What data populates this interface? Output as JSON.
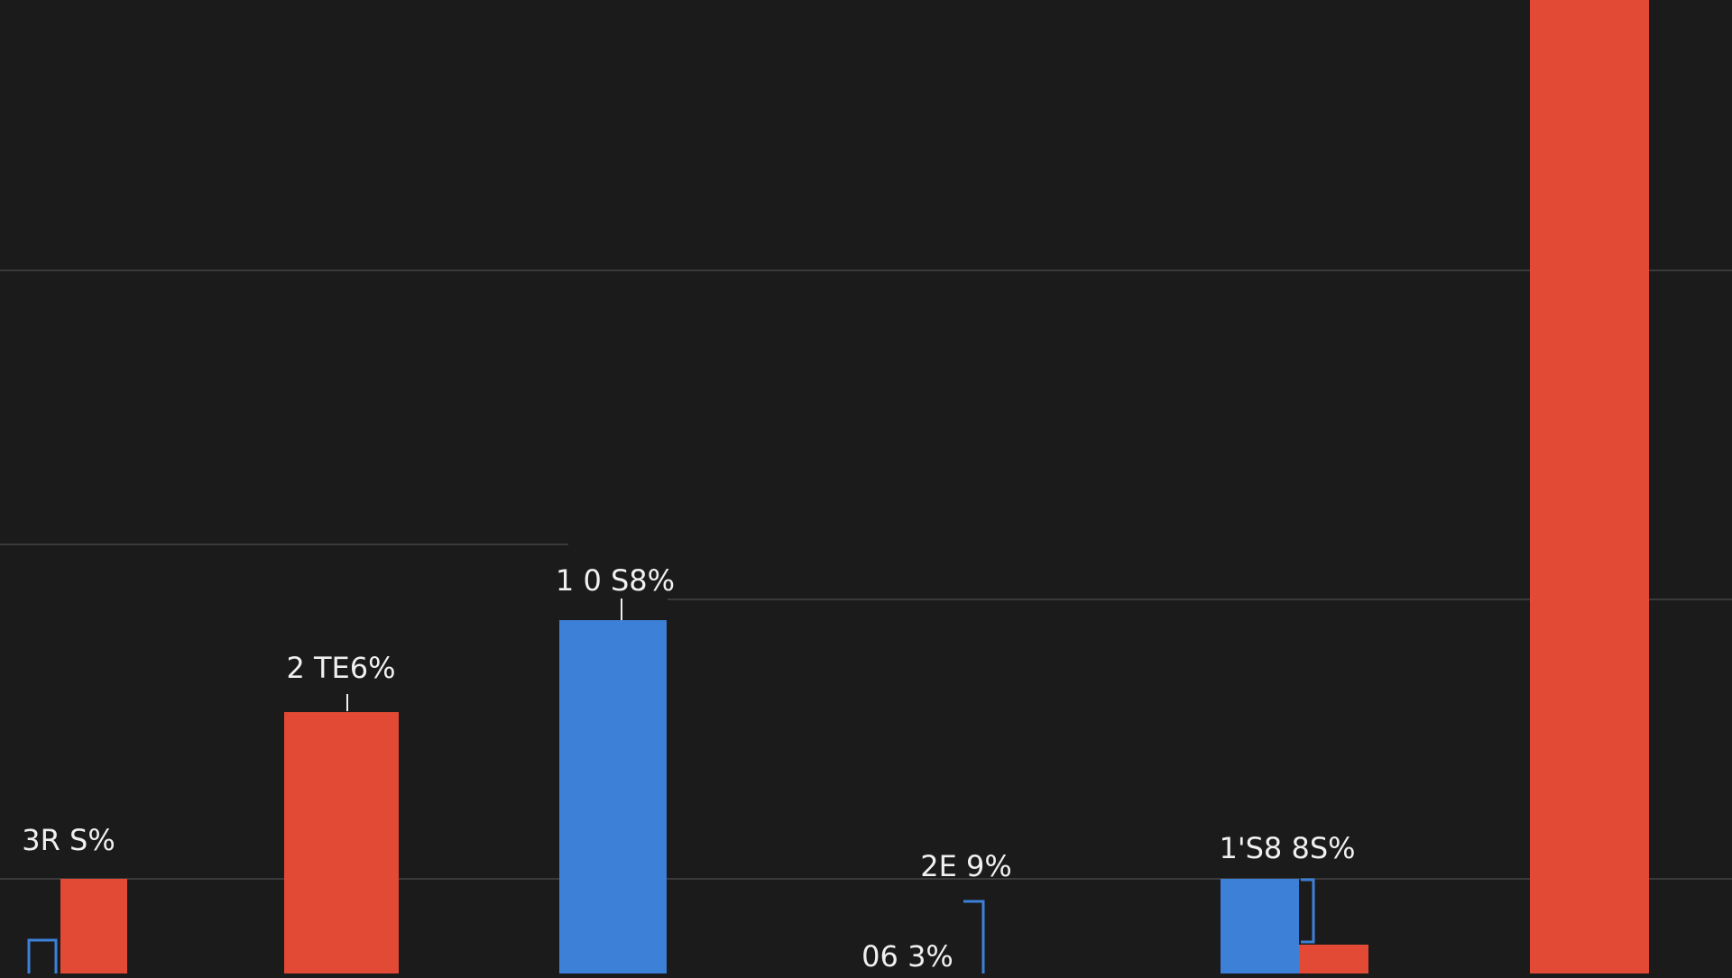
{
  "chart_data": {
    "type": "bar",
    "title": "",
    "xlabel": "",
    "ylabel": "",
    "grid": true,
    "legend": "none",
    "ylim": [
      0,
      1.08
    ],
    "gridlines": [
      0.105,
      0.415,
      0.476,
      0.78
    ],
    "bars": [
      {
        "name": "bar-red-1",
        "series": "red",
        "value": 0.105
      },
      {
        "name": "bar-red-2",
        "series": "red",
        "value": 0.29
      },
      {
        "name": "bar-blue-1",
        "series": "blue",
        "value": 0.392
      },
      {
        "name": "bar-blue-2",
        "series": "blue",
        "value": 0.105
      },
      {
        "name": "bar-red-3",
        "series": "red",
        "value": 0.032
      },
      {
        "name": "bar-red-4",
        "series": "red",
        "value": 1.08
      }
    ],
    "labels": [
      {
        "name": "data-label-1",
        "text": "3R S%"
      },
      {
        "name": "data-label-2",
        "text": "2 TE6%"
      },
      {
        "name": "data-label-3",
        "text": "1 0 S8%"
      },
      {
        "name": "data-label-4",
        "text": "2E 9%"
      },
      {
        "name": "data-label-5",
        "text": "06 3%"
      },
      {
        "name": "data-label-6",
        "text": "1'S8 8S%"
      }
    ],
    "colors": {
      "background": "#1b1b1c",
      "red": "#e24a36",
      "blue": "#3c80d8",
      "grid": "#3a3a3c",
      "label": "#f0f0f0",
      "bracket": "#3c80d8"
    }
  }
}
